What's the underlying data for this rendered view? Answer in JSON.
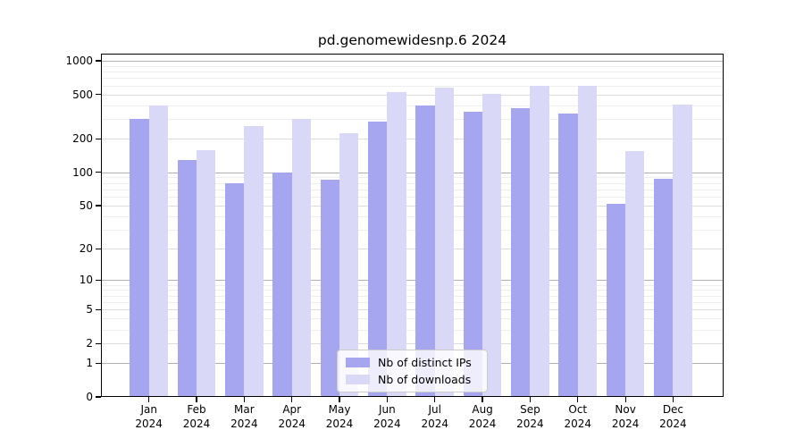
{
  "chart_data": {
    "type": "bar",
    "title": "pd.genomewidesnp.6 2024",
    "categories": [
      "Jan 2024",
      "Feb 2024",
      "Mar 2024",
      "Apr 2024",
      "May 2024",
      "Jun 2024",
      "Jul 2024",
      "Aug 2024",
      "Sep 2024",
      "Oct 2024",
      "Nov 2024",
      "Dec 2024"
    ],
    "series": [
      {
        "name": "Nb of distinct IPs",
        "color": "#a6a6f0",
        "values": [
          300,
          130,
          80,
          100,
          86,
          287,
          400,
          350,
          380,
          340,
          52,
          88
        ]
      },
      {
        "name": "Nb of downloads",
        "color": "#d9d9f7",
        "values": [
          400,
          158,
          260,
          300,
          224,
          520,
          580,
          510,
          600,
          600,
          155,
          405
        ]
      }
    ],
    "xlabel": "",
    "ylabel": "",
    "yscale": "log1p",
    "yticks": [
      0,
      1,
      2,
      5,
      10,
      20,
      50,
      100,
      200,
      500,
      1000
    ],
    "ylim": [
      0,
      1160
    ],
    "grid": true,
    "legend_position": "lower center"
  },
  "x_axis": {
    "months": [
      "Jan",
      "Feb",
      "Mar",
      "Apr",
      "May",
      "Jun",
      "Jul",
      "Aug",
      "Sep",
      "Oct",
      "Nov",
      "Dec"
    ],
    "year": "2024"
  },
  "colors": {
    "grid_decade": "#b0b0b0",
    "grid_labeled": "#dcdcdc",
    "grid_minor": "#efefef",
    "frame": "#000000"
  }
}
